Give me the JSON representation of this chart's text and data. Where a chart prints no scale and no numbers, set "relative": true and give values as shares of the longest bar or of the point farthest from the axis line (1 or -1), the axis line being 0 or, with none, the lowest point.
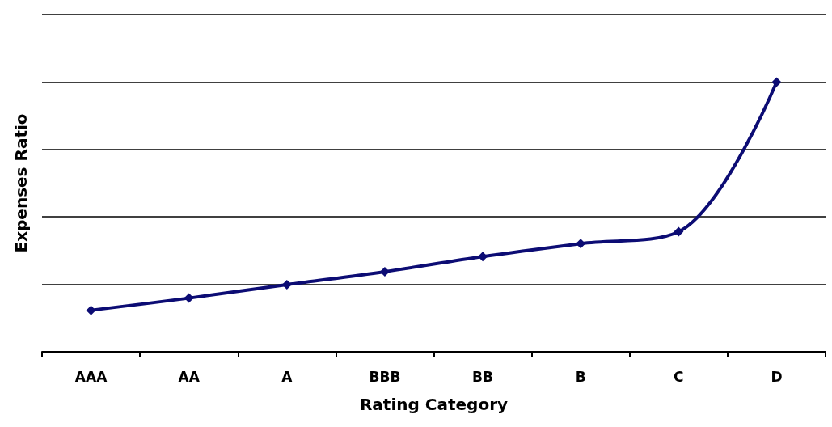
{
  "chart_data": {
    "type": "line",
    "relative": true,
    "xlabel": "Rating Category",
    "ylabel": "Expenses Ratio",
    "categories": [
      "AAA",
      "AA",
      "A",
      "BBB",
      "BB",
      "B",
      "C",
      "D"
    ],
    "series": [
      {
        "color": "#0c0c74",
        "values": [
          0.154,
          0.199,
          0.249,
          0.297,
          0.353,
          0.401,
          0.445,
          1
        ]
      }
    ],
    "marker": "diamond",
    "grid": "y"
  }
}
